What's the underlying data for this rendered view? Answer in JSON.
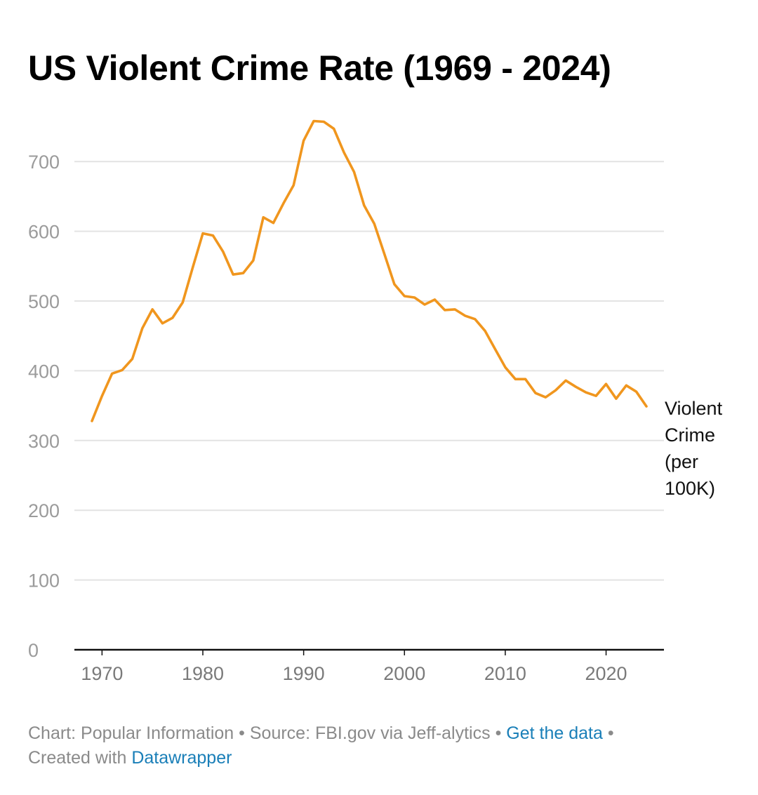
{
  "title": "US Violent Crime Rate (1969 - 2024)",
  "footer": {
    "chart_prefix": "Chart: Popular Information",
    "source": "Source: FBI.gov via Jeff-alytics",
    "get_data_link": "Get the data",
    "created_prefix": "Created with",
    "datawrapper_link": "Datawrapper",
    "separator": "•"
  },
  "colors": {
    "line": "#f0961e",
    "grid": "#e3e3e3",
    "axis": "#111111",
    "link": "#1a7fb8"
  },
  "chart_data": {
    "type": "line",
    "title": "US Violent Crime Rate (1969 - 2024)",
    "xlabel": "",
    "ylabel": "",
    "xlim": [
      1969,
      2024
    ],
    "ylim": [
      0,
      760
    ],
    "x_ticks": [
      1970,
      1980,
      1990,
      2000,
      2010,
      2020
    ],
    "y_ticks": [
      0,
      100,
      200,
      300,
      400,
      500,
      600,
      700
    ],
    "grid": true,
    "series": [
      {
        "name": "Violent Crime (per 100K)",
        "label_lines": [
          "Violent",
          "Crime",
          "(per",
          "100K)"
        ],
        "x": [
          1969,
          1970,
          1971,
          1972,
          1973,
          1974,
          1975,
          1976,
          1977,
          1978,
          1979,
          1980,
          1981,
          1982,
          1983,
          1984,
          1985,
          1986,
          1987,
          1988,
          1989,
          1990,
          1991,
          1992,
          1993,
          1994,
          1995,
          1996,
          1997,
          1998,
          1999,
          2000,
          2001,
          2002,
          2003,
          2004,
          2005,
          2006,
          2007,
          2008,
          2009,
          2010,
          2011,
          2012,
          2013,
          2014,
          2015,
          2016,
          2017,
          2018,
          2019,
          2020,
          2021,
          2022,
          2023,
          2024
        ],
        "values": [
          328,
          364,
          396,
          401,
          417,
          461,
          488,
          468,
          476,
          498,
          548,
          597,
          594,
          571,
          538,
          540,
          558,
          620,
          612,
          640,
          666,
          730,
          758,
          757,
          747,
          713,
          685,
          637,
          611,
          568,
          524,
          507,
          505,
          495,
          502,
          487,
          488,
          479,
          474,
          457,
          431,
          405,
          388,
          388,
          368,
          362,
          372,
          386,
          377,
          369,
          364,
          381,
          360,
          379,
          370,
          349
        ]
      }
    ]
  }
}
